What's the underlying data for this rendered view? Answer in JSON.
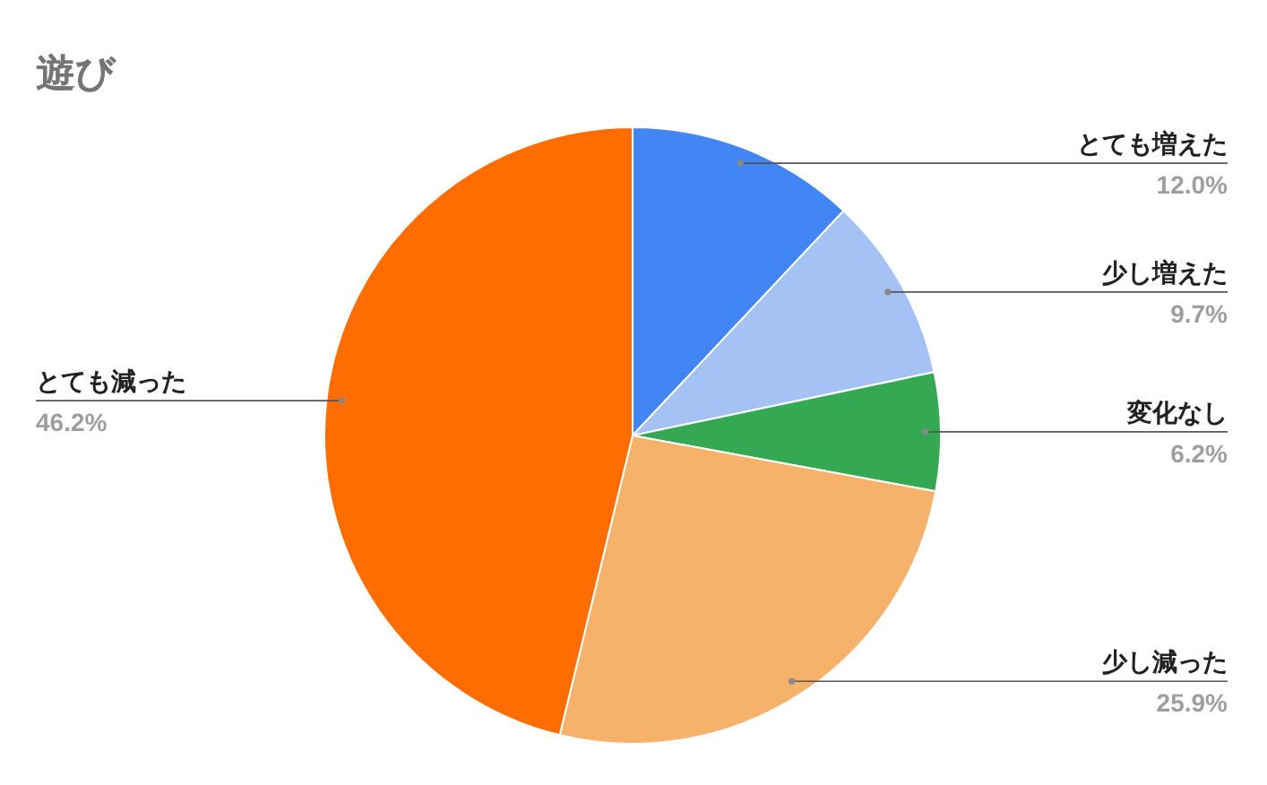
{
  "chart_data": {
    "type": "pie",
    "title": "遊び",
    "categories": [
      "とても増えた",
      "少し増えた",
      "変化なし",
      "少し減った",
      "とても減った"
    ],
    "values": [
      12.0,
      9.7,
      6.2,
      25.9,
      46.2
    ],
    "colors": [
      "#4285f4",
      "#a4c2f4",
      "#34a853",
      "#f6b26b",
      "#ff6d01"
    ],
    "value_labels": [
      "12.0%",
      "9.7%",
      "6.2%",
      "25.9%",
      "46.2%"
    ]
  }
}
